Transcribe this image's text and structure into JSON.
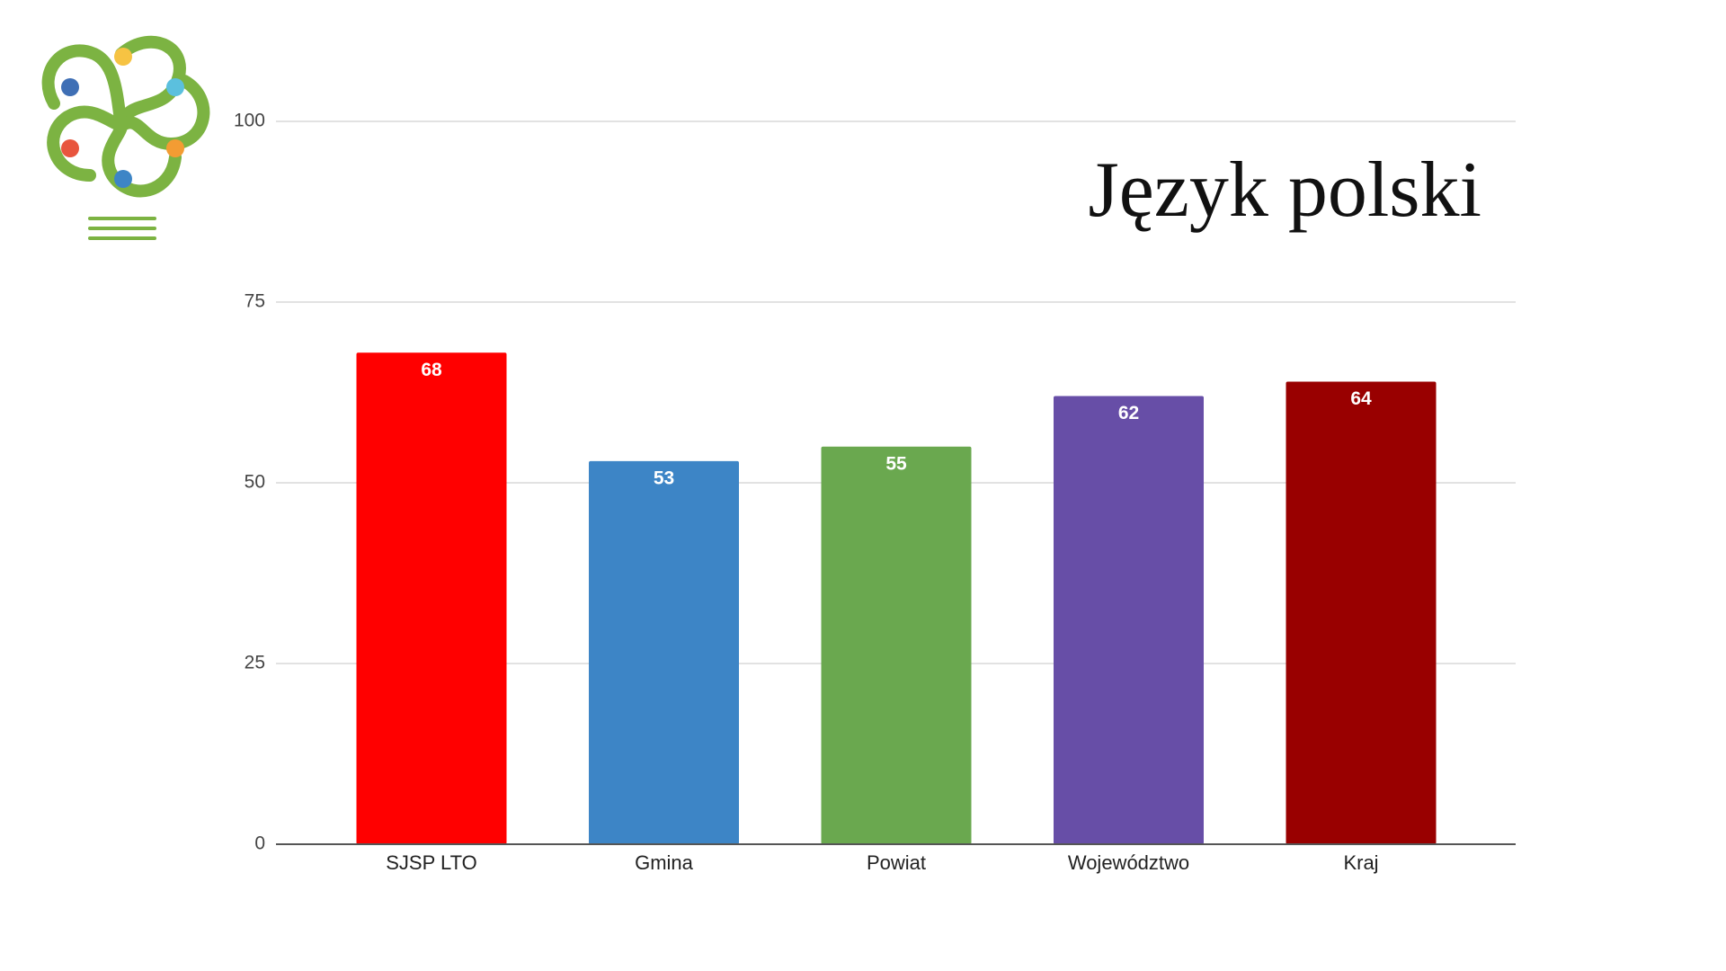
{
  "chart_data": {
    "type": "bar",
    "title": "Język polski",
    "categories": [
      "SJSP LTO",
      "Gmina",
      "Powiat",
      "Województwo",
      "Kraj"
    ],
    "values": [
      68,
      53,
      55,
      62,
      64
    ],
    "colors": [
      "#ff0000",
      "#3d85c6",
      "#6aa84f",
      "#674ea7",
      "#990000"
    ],
    "ylim": [
      0,
      100
    ],
    "yticks": [
      0,
      25,
      50,
      75,
      100
    ],
    "grid": true,
    "data_labels": true
  }
}
